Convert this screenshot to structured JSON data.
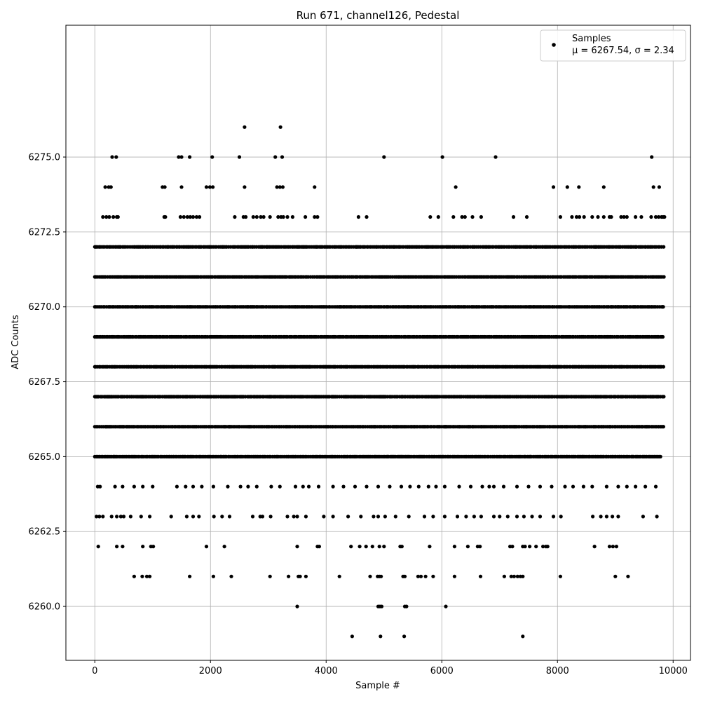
{
  "chart_data": {
    "type": "scatter",
    "title": "Run 671, channel126, Pedestal",
    "xlabel": "Sample #",
    "ylabel": "ADC Counts",
    "xlim": [
      -500,
      10300
    ],
    "ylim": [
      6258.2,
      6279.4
    ],
    "x_ticks": [
      0,
      2000,
      4000,
      6000,
      8000,
      10000
    ],
    "x_tick_labels": [
      "0",
      "2000",
      "4000",
      "6000",
      "8000",
      "10000"
    ],
    "y_ticks": [
      6260.0,
      6262.5,
      6265.0,
      6267.5,
      6270.0,
      6272.5,
      6275.0
    ],
    "y_tick_labels": [
      "6260.0",
      "6262.5",
      "6265.0",
      "6267.5",
      "6270.0",
      "6272.5",
      "6275.0"
    ],
    "grid": true,
    "legend_position": "top-right",
    "marker_color": "#000000",
    "series": [
      {
        "name": "Samples",
        "legend_stats": "μ = 6267.54, σ = 2.34",
        "mean": 6267.54,
        "std": 2.34,
        "x_range": [
          0,
          9850
        ],
        "levels": [
          {
            "y": 6259,
            "x": [
              4450,
              4940,
              5350,
              7400
            ]
          },
          {
            "y": 6260,
            "x": [
              3500,
              4900,
              4930,
              4960,
              5360,
              5390,
              6070
            ]
          },
          {
            "y": 6261,
            "x": [
              680,
              820,
              900,
              950,
              1640,
              2050,
              2360,
              3030,
              3350,
              3520,
              3550,
              3650,
              4230,
              4760,
              4890,
              4920,
              4950,
              5330,
              5360,
              5590,
              5640,
              5720,
              5850,
              6220,
              6670,
              7080,
              7200,
              7250,
              7310,
              7360,
              7400,
              8050,
              9000,
              9220
            ]
          },
          {
            "y": 6262,
            "x": [
              60,
              380,
              480,
              830,
              970,
              1010,
              1930,
              2240,
              3500,
              3850,
              3880,
              4430,
              4580,
              4690,
              4800,
              4920,
              5000,
              5280,
              5310,
              5790,
              6220,
              6450,
              6620,
              6660,
              7180,
              7220,
              7400,
              7440,
              7520,
              7630,
              7750,
              7800,
              7830,
              8640,
              8900,
              8960,
              9020
            ]
          },
          {
            "y": 6263,
            "x": [
              30,
              80,
              140,
              290,
              380,
              450,
              500,
              620,
              800,
              950,
              1320,
              1590,
              1700,
              1800,
              2060,
              2200,
              2330,
              2730,
              2860,
              2900,
              3040,
              3330,
              3440,
              3500,
              3650,
              3960,
              4120,
              4380,
              4600,
              4820,
              4900,
              5020,
              5200,
              5430,
              5700,
              5850,
              6050,
              6270,
              6420,
              6560,
              6680,
              6900,
              7000,
              7140,
              7300,
              7420,
              7560,
              7700,
              7930,
              8060,
              8610,
              8750,
              8850,
              8950,
              9050,
              9480,
              9720
            ]
          },
          {
            "y": 6264,
            "x": [
              50,
              90,
              350,
              480,
              680,
              830,
              1000,
              1420,
              1570,
              1700,
              1850,
              2050,
              2300,
              2520,
              2650,
              2800,
              3050,
              3200,
              3470,
              3600,
              3700,
              3870,
              4120,
              4300,
              4500,
              4700,
              4900,
              5100,
              5300,
              5450,
              5600,
              5770,
              5900,
              6050,
              6300,
              6500,
              6700,
              6820,
              6900,
              7070,
              7300,
              7500,
              7700,
              7900,
              8130,
              8270,
              8450,
              8600,
              8850,
              9050,
              9200,
              9350,
              9520,
              9700
            ]
          },
          {
            "y": 6265,
            "x_dense": [
              0,
              9800
            ]
          },
          {
            "y": 6266,
            "x_dense": [
              0,
              9850
            ]
          },
          {
            "y": 6267,
            "x_dense": [
              0,
              9850
            ]
          },
          {
            "y": 6268,
            "x_dense": [
              0,
              9850
            ]
          },
          {
            "y": 6269,
            "x_dense": [
              0,
              9850
            ]
          },
          {
            "y": 6270,
            "x_dense": [
              0,
              9850
            ]
          },
          {
            "y": 6271,
            "x_dense": [
              0,
              9850
            ]
          },
          {
            "y": 6272,
            "x_dense": [
              0,
              9850
            ]
          },
          {
            "y": 6273,
            "x": [
              140,
              200,
              250,
              320,
              380,
              400,
              1200,
              1220,
              1480,
              1540,
              1600,
              1650,
              1700,
              1760,
              1810,
              2420,
              2570,
              2610,
              2740,
              2800,
              2870,
              2920,
              3030,
              3170,
              3220,
              3260,
              3330,
              3420,
              3640,
              3800,
              3850,
              4560,
              4700,
              5800,
              5940,
              6200,
              6350,
              6400,
              6530,
              6680,
              7240,
              7470,
              8050,
              8250,
              8330,
              8380,
              8460,
              8600,
              8700,
              8800,
              8900,
              8930,
              9100,
              9150,
              9200,
              9350,
              9450,
              9620,
              9700,
              9750,
              9800,
              9830,
              9850
            ]
          },
          {
            "y": 6274,
            "x": [
              180,
              240,
              280,
              1170,
              1210,
              1500,
              1930,
              1990,
              2040,
              2590,
              3150,
              3200,
              3250,
              3800,
              6240,
              7930,
              8170,
              8370,
              8800,
              9660,
              9760
            ]
          },
          {
            "y": 6275,
            "x": [
              300,
              370,
              1450,
              1500,
              1640,
              2030,
              2500,
              3120,
              3240,
              5000,
              6010,
              6930,
              9630
            ]
          },
          {
            "y": 6276,
            "x": [
              2590,
              3210
            ]
          }
        ]
      }
    ]
  }
}
